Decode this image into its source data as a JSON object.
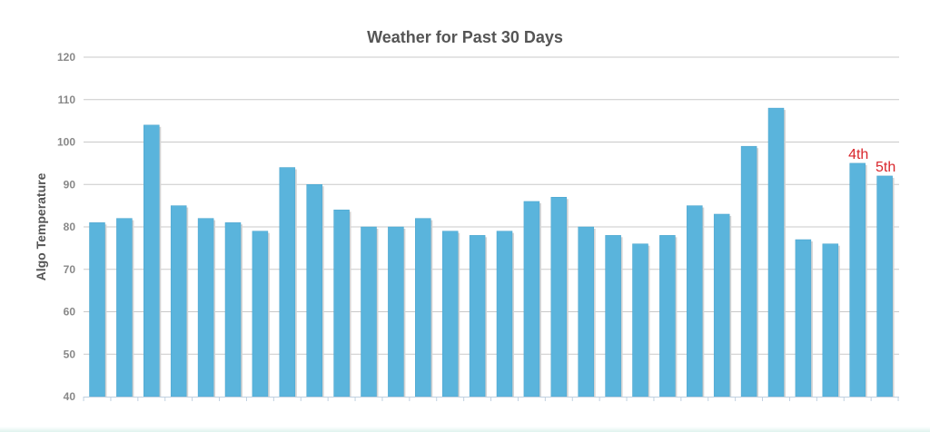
{
  "chart_data": {
    "type": "bar",
    "title": "Weather for Past 30 Days",
    "xlabel": "",
    "ylabel": "Algo Temperature",
    "ylim": [
      40,
      120
    ],
    "y_ticks": [
      40,
      50,
      60,
      70,
      80,
      90,
      100,
      110,
      120
    ],
    "grid": true,
    "values": [
      81,
      82,
      104,
      85,
      82,
      81,
      79,
      94,
      90,
      84,
      80,
      80,
      82,
      79,
      78,
      79,
      86,
      87,
      80,
      78,
      76,
      78,
      85,
      83,
      99,
      108,
      77,
      76,
      95,
      92
    ],
    "annotations": [
      {
        "bar_index": 28,
        "text": "4th"
      },
      {
        "bar_index": 29,
        "text": "5th"
      }
    ],
    "colors": {
      "bar": "#5ab4dc",
      "bar_edge": "#4aa3cc",
      "bar_shadow": "#d4d4d4",
      "grid": "#c9c9c9",
      "axis": "#c0d0e0",
      "annotation": "#d9262c"
    }
  }
}
